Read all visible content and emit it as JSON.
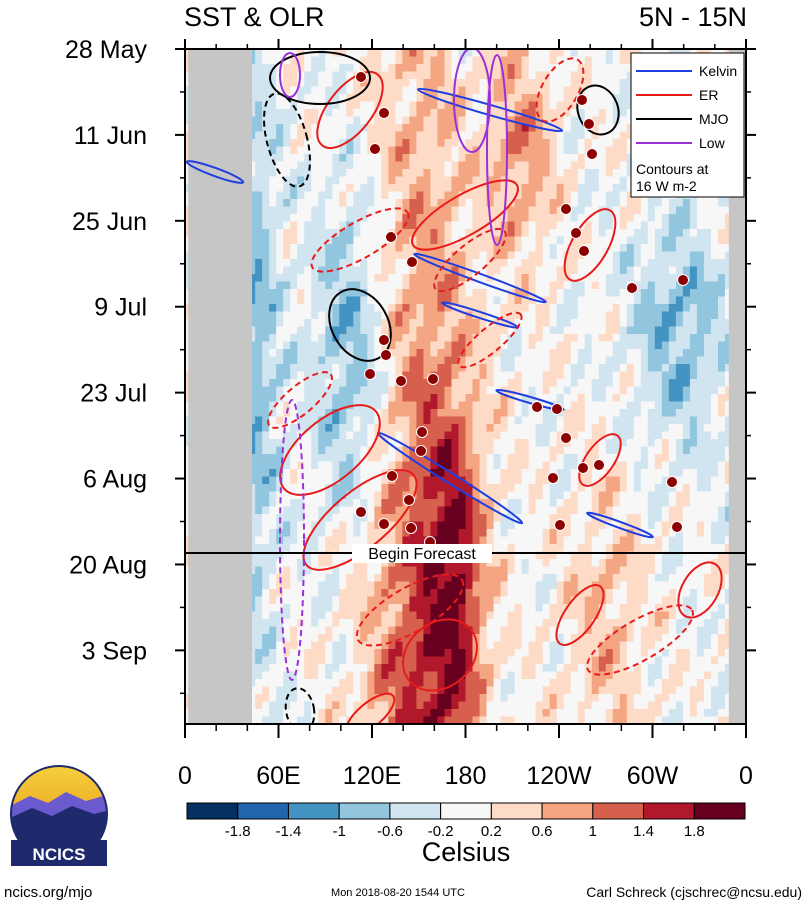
{
  "chart_data": {
    "type": "heatmap",
    "title_left": "SST & OLR",
    "title_right": "5N - 15N",
    "x_tick_labels": [
      "0",
      "60E",
      "120E",
      "180",
      "120W",
      "60W",
      "0"
    ],
    "x_tick_degrees_east": [
      0,
      60,
      120,
      180,
      240,
      300,
      360
    ],
    "x_range_degrees_east": [
      0,
      360
    ],
    "y_tick_labels": [
      "28 May",
      "11 Jun",
      "25 Jun",
      "9 Jul",
      "23 Jul",
      "6 Aug",
      "20 Aug",
      "3 Sep"
    ],
    "y_tick_dates": [
      "2018-05-28",
      "2018-06-11",
      "2018-06-25",
      "2018-07-09",
      "2018-07-23",
      "2018-08-06",
      "2018-08-20",
      "2018-09-03"
    ],
    "y_range_dates": [
      "2018-05-28",
      "2018-09-15"
    ],
    "y_axis_inverted": true,
    "forecast_start_date": "2018-08-20",
    "forecast_label": "Begin Forecast",
    "colorbar": {
      "unit_label": "Celsius",
      "tick_labels": [
        "-1.8",
        "-1.4",
        "-1",
        "-0.6",
        "-0.2",
        "0.2",
        "0.6",
        "1",
        "1.4",
        "1.8"
      ],
      "colors": [
        "#053061",
        "#2166ac",
        "#4393c3",
        "#92c5de",
        "#d1e5f0",
        "#f7f7f7",
        "#fddbc7",
        "#f4a582",
        "#d6604d",
        "#b2182b",
        "#67001f"
      ]
    },
    "legend": {
      "placement": "top-right",
      "entries": [
        {
          "name": "Kelvin",
          "color": "#1f3fe0"
        },
        {
          "name": "ER",
          "color": "#e81b1b"
        },
        {
          "name": "MJO",
          "color": "#000000"
        },
        {
          "name": "Low",
          "color": "#9b30d9"
        }
      ],
      "note_line1": "Contours at",
      "note_line2": "16 W m-2"
    },
    "land_mask_color": "#c6c6c6",
    "land_mask_degrees": [
      [
        2,
        43
      ],
      [
        349,
        360
      ]
    ]
  },
  "footer": {
    "left": "ncics.org/mjo",
    "center": "Mon 2018-08-20 1544 UTC",
    "right": "Carl Schreck (cjschrec@ncsu.edu)"
  },
  "logo": {
    "text": "NCICS"
  }
}
